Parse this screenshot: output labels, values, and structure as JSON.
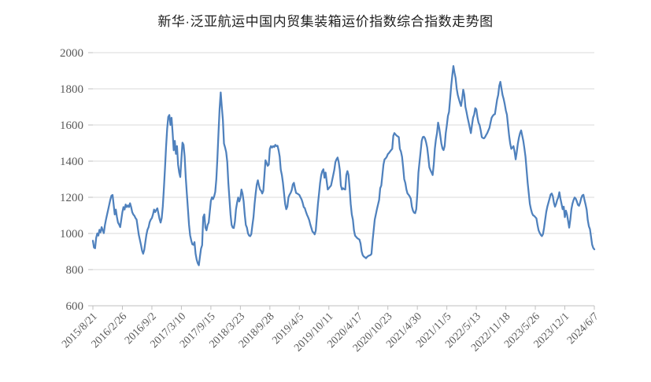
{
  "chart": {
    "title": "新华·泛亚航运中国内贸集装箱运价指数综合指数走势图"
  },
  "style": {
    "line_color": "#4F81BD",
    "grid_color": "#D9D9D9",
    "axis_color": "#BFBFBF",
    "label_color": "#595959",
    "title_color": "#1f1f1f",
    "background": "#FFFFFF"
  },
  "chart_data": {
    "type": "line",
    "title": "新华·泛亚航运中国内贸集装箱运价指数综合指数走势图",
    "frequency": "weekly",
    "x_start": "2015/8/21",
    "x_end": "2024/6/7",
    "x_tick_every_n_points": 27,
    "x_tick_labels": [
      "2015/8/21",
      "2016/2/26",
      "2016/9/2",
      "2017/3/10",
      "2017/9/15",
      "2018/3/23",
      "2018/9/28",
      "2019/4/5",
      "2019/10/11",
      "2020/4/17",
      "2020/10/23",
      "2021/4/30",
      "2021/11/5",
      "2022/5/13",
      "2022/11/18",
      "2023/5/26",
      "2023/12/1",
      "2024/6/7"
    ],
    "xlabel": "",
    "ylabel": "",
    "ylim": [
      600,
      2000
    ],
    "y_ticks": [
      600,
      800,
      1000,
      1200,
      1400,
      1600,
      1800,
      2000
    ],
    "grid": "horizontal",
    "legend_position": "none",
    "series": [
      {
        "name": "综合指数",
        "color": "#4F81BD",
        "values": [
          960,
          922,
          918,
          975,
          1000,
          988,
          1020,
          1006,
          1035,
          1018,
          1002,
          1046,
          1077,
          1105,
          1132,
          1160,
          1188,
          1209,
          1213,
          1160,
          1105,
          1132,
          1091,
          1060,
          1049,
          1035,
          1077,
          1118,
          1146,
          1132,
          1160,
          1146,
          1155,
          1146,
          1167,
          1146,
          1118,
          1105,
          1098,
          1085,
          1077,
          1035,
          993,
          965,
          937,
          905,
          888,
          909,
          951,
          993,
          1021,
          1035,
          1063,
          1077,
          1085,
          1105,
          1132,
          1118,
          1130,
          1139,
          1110,
          1080,
          1060,
          1085,
          1150,
          1250,
          1360,
          1480,
          1580,
          1645,
          1655,
          1600,
          1640,
          1555,
          1460,
          1512,
          1440,
          1483,
          1380,
          1337,
          1312,
          1410,
          1502,
          1490,
          1425,
          1310,
          1221,
          1135,
          1048,
          990,
          962,
          940,
          937,
          952,
          888,
          855,
          835,
          824,
          872,
          916,
          935,
          1090,
          1105,
          1032,
          1017,
          1047,
          1060,
          1120,
          1180,
          1200,
          1190,
          1205,
          1230,
          1300,
          1420,
          1560,
          1690,
          1780,
          1700,
          1628,
          1497,
          1476,
          1450,
          1396,
          1279,
          1192,
          1105,
          1047,
          1032,
          1030,
          1065,
          1134,
          1170,
          1199,
          1177,
          1195,
          1243,
          1220,
          1177,
          1105,
          1047,
          1032,
          1000,
          988,
          985,
          996,
          1045,
          1090,
          1163,
          1221,
          1270,
          1294,
          1265,
          1243,
          1236,
          1221,
          1236,
          1320,
          1405,
          1390,
          1374,
          1381,
          1468,
          1483,
          1475,
          1483,
          1478,
          1490,
          1483,
          1485,
          1460,
          1425,
          1352,
          1323,
          1279,
          1221,
          1163,
          1134,
          1148,
          1199,
          1214,
          1224,
          1240,
          1271,
          1280,
          1250,
          1224,
          1221,
          1217,
          1213,
          1200,
          1189,
          1170,
          1146,
          1140,
          1120,
          1103,
          1090,
          1074,
          1050,
          1030,
          1010,
          1005,
          995,
          1015,
          1090,
          1163,
          1220,
          1280,
          1323,
          1345,
          1355,
          1308,
          1337,
          1290,
          1243,
          1250,
          1258,
          1265,
          1294,
          1323,
          1352,
          1395,
          1410,
          1420,
          1395,
          1352,
          1265,
          1243,
          1250,
          1245,
          1243,
          1323,
          1345,
          1323,
          1250,
          1163,
          1105,
          1076,
          1017,
          988,
          981,
          974,
          970,
          966,
          945,
          901,
          880,
          872,
          868,
          863,
          870,
          875,
          878,
          880,
          887,
          959,
          1017,
          1076,
          1105,
          1134,
          1160,
          1185,
          1250,
          1265,
          1323,
          1381,
          1410,
          1415,
          1424,
          1439,
          1445,
          1453,
          1461,
          1468,
          1540,
          1555,
          1548,
          1541,
          1537,
          1533,
          1468,
          1453,
          1424,
          1366,
          1300,
          1279,
          1243,
          1221,
          1214,
          1205,
          1192,
          1148,
          1126,
          1115,
          1112,
          1134,
          1221,
          1337,
          1395,
          1453,
          1512,
          1533,
          1535,
          1526,
          1504,
          1475,
          1424,
          1366,
          1350,
          1337,
          1323,
          1381,
          1468,
          1520,
          1555,
          1613,
          1584,
          1541,
          1497,
          1470,
          1461,
          1483,
          1555,
          1599,
          1650,
          1672,
          1744,
          1817,
          1875,
          1926,
          1890,
          1860,
          1802,
          1766,
          1744,
          1723,
          1705,
          1744,
          1795,
          1766,
          1700,
          1672,
          1640,
          1613,
          1584,
          1555,
          1599,
          1640,
          1657,
          1693,
          1686,
          1643,
          1613,
          1599,
          1570,
          1533,
          1528,
          1526,
          1533,
          1545,
          1555,
          1570,
          1584,
          1613,
          1640,
          1650,
          1657,
          1660,
          1700,
          1740,
          1766,
          1817,
          1839,
          1802,
          1766,
          1744,
          1715,
          1680,
          1657,
          1599,
          1541,
          1497,
          1468,
          1475,
          1483,
          1453,
          1410,
          1450,
          1497,
          1530,
          1555,
          1570,
          1541,
          1512,
          1470,
          1424,
          1352,
          1279,
          1221,
          1163,
          1134,
          1112,
          1100,
          1097,
          1090,
          1083,
          1047,
          1017,
          1003,
          992,
          985,
          996,
          1032,
          1076,
          1119,
          1148,
          1170,
          1192,
          1215,
          1221,
          1206,
          1170,
          1148,
          1163,
          1185,
          1199,
          1228,
          1192,
          1163,
          1134,
          1148,
          1090,
          1126,
          1105,
          1070,
          1032,
          1076,
          1134,
          1165,
          1185,
          1199,
          1192,
          1177,
          1158,
          1153,
          1170,
          1195,
          1210,
          1214,
          1185,
          1160,
          1131,
          1074,
          1040,
          1024,
          981,
          938,
          920,
          912
        ]
      }
    ]
  }
}
